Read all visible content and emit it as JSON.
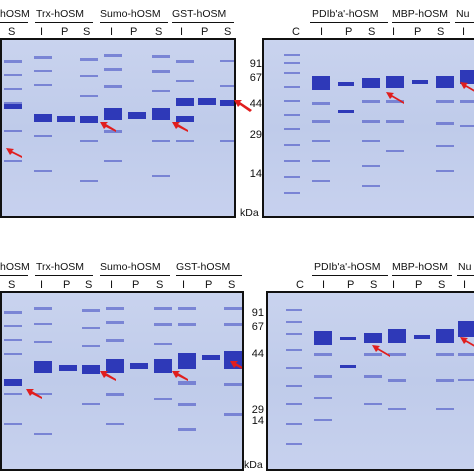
{
  "lane_letters": {
    "C": "C",
    "I": "I",
    "P": "P",
    "S": "S"
  },
  "units": "kDa",
  "markers": [
    "91",
    "67",
    "44",
    "29",
    "14"
  ],
  "rows": [
    {
      "left_groups": [
        "hOSM",
        "Trx-hOSM",
        "Sumo-hOSM",
        "GST-hOSM"
      ],
      "right_groups": [
        "PDIb'a'-hOSM",
        "MBP-hOSM",
        "Nu"
      ]
    },
    {
      "left_groups": [
        "hOSM",
        "Trx-hOSM",
        "Sumo-hOSM",
        "GST-hOSM"
      ],
      "right_groups": [
        "PDIb'a'-hOSM",
        "MBP-hOSM",
        "Nu"
      ]
    }
  ],
  "colors": {
    "band": "#2e39b8",
    "gel": "#c3cdec",
    "arrow": "#e01e1e",
    "frame": "#111111"
  }
}
